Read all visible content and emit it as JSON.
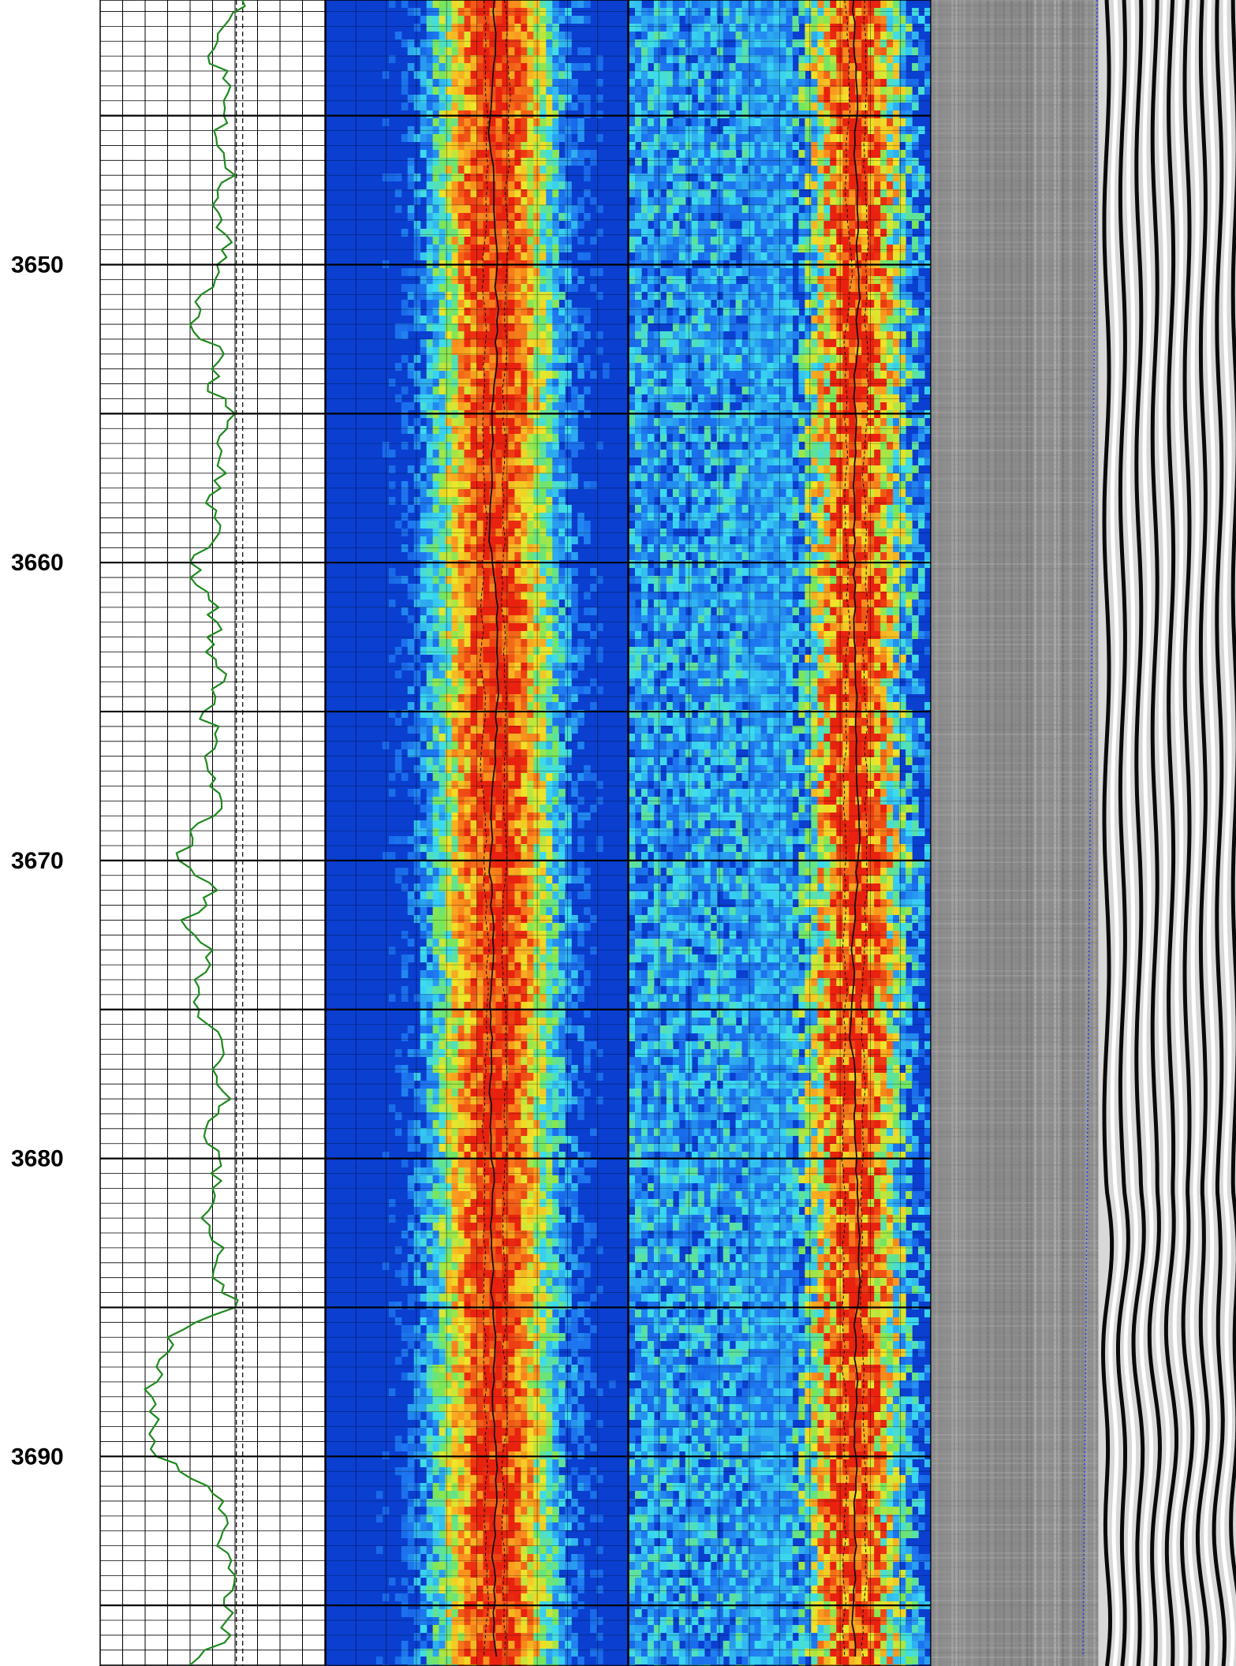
{
  "chart_data": {
    "type": "line",
    "title": "",
    "xlabel": "",
    "ylabel": "",
    "depth_range": [
      3641.1,
      3697.0
    ],
    "depth_tick_labels": [
      "3650",
      "3660",
      "3670",
      "3680",
      "3690"
    ],
    "depth_ticks": [
      3650,
      3660,
      3670,
      3680,
      3690
    ],
    "major_gridlines": [
      3645,
      3650,
      3655,
      3660,
      3665,
      3670,
      3675,
      3680,
      3685,
      3690,
      3695
    ],
    "grid": true,
    "tracks": [
      {
        "name": "",
        "kind": "curve",
        "x_range": [
          0,
          1
        ],
        "line_color": "#1f8a1f",
        "reference_line_x": 0.62,
        "depth": [
          3641.1,
          3642,
          3643,
          3644,
          3645,
          3646,
          3647,
          3648,
          3649,
          3650,
          3651,
          3652,
          3653,
          3654,
          3655,
          3656,
          3657,
          3658,
          3659,
          3660,
          3661,
          3662,
          3663,
          3664,
          3665,
          3666,
          3667,
          3668,
          3669,
          3670,
          3671,
          3672,
          3673,
          3674,
          3675,
          3676,
          3677,
          3678,
          3679,
          3680,
          3681,
          3682,
          3683,
          3684,
          3685,
          3686,
          3687,
          3688,
          3689,
          3690,
          3691,
          3692,
          3693,
          3694,
          3695,
          3696,
          3697
        ],
        "values": [
          0.63,
          0.55,
          0.48,
          0.58,
          0.55,
          0.52,
          0.6,
          0.5,
          0.56,
          0.52,
          0.45,
          0.4,
          0.55,
          0.48,
          0.6,
          0.52,
          0.56,
          0.47,
          0.53,
          0.4,
          0.48,
          0.52,
          0.47,
          0.55,
          0.46,
          0.52,
          0.48,
          0.54,
          0.4,
          0.35,
          0.52,
          0.36,
          0.5,
          0.42,
          0.44,
          0.54,
          0.5,
          0.58,
          0.47,
          0.53,
          0.5,
          0.45,
          0.55,
          0.5,
          0.6,
          0.3,
          0.25,
          0.23,
          0.24,
          0.25,
          0.48,
          0.56,
          0.52,
          0.6,
          0.55,
          0.58,
          0.4
        ]
      },
      {
        "name": "",
        "kind": "image",
        "colormap": "rainbow"
      },
      {
        "name": "",
        "kind": "image",
        "colormap": "rainbow"
      },
      {
        "name": "",
        "kind": "image",
        "colormap": "grayscale"
      },
      {
        "name": "",
        "kind": "image",
        "colormap": "grayscale-stripes"
      }
    ]
  },
  "colors": {
    "background": "#ffffff",
    "grid": "#000000",
    "curve": "#1f8a1f",
    "blue_floor": "#0a3fd0",
    "red_core": "#e8220f",
    "trend_line": "#111111",
    "dotted_marker": "#1a3cff"
  }
}
